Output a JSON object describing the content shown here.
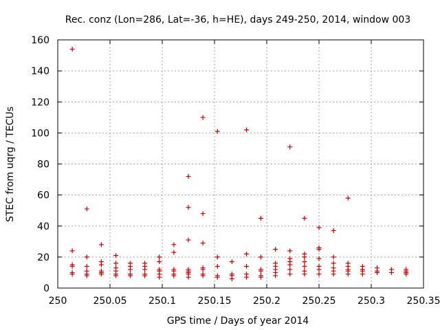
{
  "chart_data": {
    "type": "scatter",
    "title": "Rec. conz (Lon=286, Lat=-36, h=HE), days 249-250, 2014, window 003",
    "xlabel": "GPS time / Days of year 2014",
    "ylabel": "STEC from uqrg / TECUs",
    "xlim": [
      250,
      250.35
    ],
    "ylim": [
      0,
      160
    ],
    "x_ticks": [
      250,
      250.05,
      250.1,
      250.15,
      250.2,
      250.25,
      250.3,
      250.35
    ],
    "x_tick_labels": [
      "250",
      "250.05",
      "250.1",
      "250.15",
      "250.2",
      "250.25",
      "250.3",
      "250.35"
    ],
    "y_ticks": [
      0,
      20,
      40,
      60,
      80,
      100,
      120,
      140,
      160
    ],
    "y_tick_labels": [
      "0",
      "20",
      "40",
      "60",
      "80",
      "100",
      "120",
      "140",
      "160"
    ],
    "grid": true,
    "marker": "plus",
    "marker_color": "#cc0000",
    "series": [
      {
        "points": [
          [
            250.0139,
            154
          ],
          [
            250.0139,
            24
          ],
          [
            250.0139,
            15
          ],
          [
            250.0139,
            14
          ],
          [
            250.0139,
            10
          ],
          [
            250.0139,
            9
          ],
          [
            250.0278,
            51
          ],
          [
            250.0278,
            20
          ],
          [
            250.0278,
            14
          ],
          [
            250.0278,
            11
          ],
          [
            250.0278,
            9
          ],
          [
            250.0278,
            8
          ],
          [
            250.0417,
            28
          ],
          [
            250.0417,
            17
          ],
          [
            250.0417,
            15
          ],
          [
            250.0417,
            11
          ],
          [
            250.0417,
            10
          ],
          [
            250.0417,
            9
          ],
          [
            250.0556,
            21
          ],
          [
            250.0556,
            16
          ],
          [
            250.0556,
            13
          ],
          [
            250.0556,
            11
          ],
          [
            250.0556,
            9
          ],
          [
            250.0556,
            8
          ],
          [
            250.0694,
            16
          ],
          [
            250.0694,
            14
          ],
          [
            250.0694,
            12
          ],
          [
            250.0694,
            9
          ],
          [
            250.0694,
            8
          ],
          [
            250.0833,
            16
          ],
          [
            250.0833,
            14
          ],
          [
            250.0833,
            12
          ],
          [
            250.0833,
            9
          ],
          [
            250.0833,
            8
          ],
          [
            250.0972,
            20
          ],
          [
            250.0972,
            17
          ],
          [
            250.0972,
            12
          ],
          [
            250.0972,
            11
          ],
          [
            250.0972,
            9
          ],
          [
            250.0972,
            7
          ],
          [
            250.1111,
            28
          ],
          [
            250.1111,
            23
          ],
          [
            250.1111,
            12
          ],
          [
            250.1111,
            11
          ],
          [
            250.1111,
            9
          ],
          [
            250.1111,
            8
          ],
          [
            250.125,
            72
          ],
          [
            250.125,
            52
          ],
          [
            250.125,
            31
          ],
          [
            250.125,
            12
          ],
          [
            250.125,
            11
          ],
          [
            250.125,
            10
          ],
          [
            250.125,
            9
          ],
          [
            250.125,
            7
          ],
          [
            250.1389,
            110
          ],
          [
            250.1389,
            48
          ],
          [
            250.1389,
            29
          ],
          [
            250.1389,
            13
          ],
          [
            250.1389,
            12
          ],
          [
            250.1389,
            9
          ],
          [
            250.1389,
            8
          ],
          [
            250.1528,
            101
          ],
          [
            250.1528,
            20
          ],
          [
            250.1528,
            14
          ],
          [
            250.1528,
            8
          ],
          [
            250.1528,
            7
          ],
          [
            250.1667,
            17
          ],
          [
            250.1667,
            9
          ],
          [
            250.1667,
            8
          ],
          [
            250.1667,
            6
          ],
          [
            250.1806,
            102
          ],
          [
            250.1806,
            22
          ],
          [
            250.1806,
            14
          ],
          [
            250.1806,
            9
          ],
          [
            250.1806,
            7
          ],
          [
            250.1944,
            45
          ],
          [
            250.1944,
            20
          ],
          [
            250.1944,
            12
          ],
          [
            250.1944,
            11
          ],
          [
            250.1944,
            8
          ],
          [
            250.1944,
            7
          ],
          [
            250.2083,
            25
          ],
          [
            250.2083,
            16
          ],
          [
            250.2083,
            14
          ],
          [
            250.2083,
            12
          ],
          [
            250.2083,
            10
          ],
          [
            250.2083,
            8
          ],
          [
            250.2222,
            91
          ],
          [
            250.2222,
            24
          ],
          [
            250.2222,
            19
          ],
          [
            250.2222,
            17
          ],
          [
            250.2222,
            15
          ],
          [
            250.2222,
            12
          ],
          [
            250.2222,
            9
          ],
          [
            250.2361,
            45
          ],
          [
            250.2361,
            22
          ],
          [
            250.2361,
            20
          ],
          [
            250.2361,
            17
          ],
          [
            250.2361,
            14
          ],
          [
            250.2361,
            11
          ],
          [
            250.2361,
            9
          ],
          [
            250.25,
            39
          ],
          [
            250.25,
            26
          ],
          [
            250.25,
            25
          ],
          [
            250.25,
            19
          ],
          [
            250.25,
            14
          ],
          [
            250.25,
            12
          ],
          [
            250.25,
            9
          ],
          [
            250.2639,
            37
          ],
          [
            250.2639,
            20
          ],
          [
            250.2639,
            16
          ],
          [
            250.2639,
            13
          ],
          [
            250.2639,
            11
          ],
          [
            250.2639,
            9
          ],
          [
            250.2778,
            58
          ],
          [
            250.2778,
            16
          ],
          [
            250.2778,
            14
          ],
          [
            250.2778,
            12
          ],
          [
            250.2778,
            11
          ],
          [
            250.2778,
            9
          ],
          [
            250.2917,
            14
          ],
          [
            250.2917,
            12
          ],
          [
            250.2917,
            11
          ],
          [
            250.2917,
            9
          ],
          [
            250.3056,
            13
          ],
          [
            250.3056,
            11
          ],
          [
            250.3056,
            10
          ],
          [
            250.3194,
            12
          ],
          [
            250.3194,
            10
          ],
          [
            250.3333,
            12
          ],
          [
            250.3333,
            11
          ],
          [
            250.3333,
            10
          ],
          [
            250.3333,
            9
          ]
        ]
      }
    ]
  }
}
